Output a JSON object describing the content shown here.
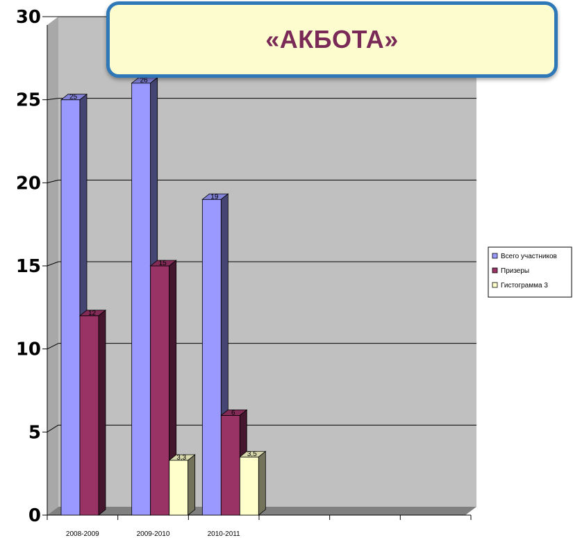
{
  "title": "«АКБОТА»",
  "chart_data": {
    "type": "bar",
    "categories": [
      "2008-2009",
      "2009-2010",
      "2010-2011",
      "",
      "",
      ""
    ],
    "series": [
      {
        "name": "Всего участников",
        "values": [
          25,
          26,
          19,
          null,
          null,
          null
        ],
        "labels": [
          "25",
          "26",
          "19",
          "",
          "",
          ""
        ],
        "color": "#9999ff"
      },
      {
        "name": "Призеры",
        "values": [
          12,
          15,
          6,
          null,
          null,
          null
        ],
        "labels": [
          "12",
          "15",
          "6",
          "",
          "",
          ""
        ],
        "color": "#993366"
      },
      {
        "name": "Гистограмма 3",
        "values": [
          null,
          3.3,
          3.5,
          null,
          null,
          null
        ],
        "labels": [
          "",
          "3,3",
          "3,5",
          "",
          "",
          ""
        ],
        "color": "#ffffcc"
      }
    ],
    "ylim": [
      0,
      30
    ],
    "yticks": [
      0,
      5,
      10,
      15,
      20,
      25,
      30
    ],
    "grid": true,
    "legend_position": "right",
    "colors": {
      "plot_background": "#c0c0c0",
      "floor": "#808080",
      "grid": "#000000"
    }
  }
}
